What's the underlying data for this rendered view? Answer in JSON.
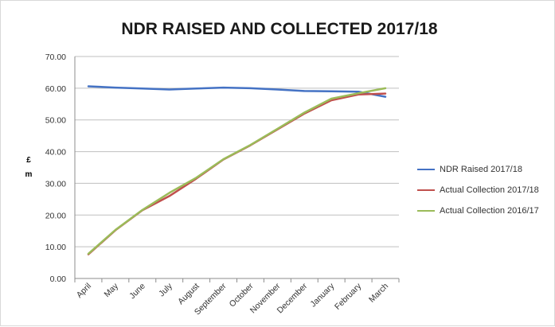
{
  "chart_data": {
    "type": "line",
    "title": "NDR RAISED AND COLLECTED 2017/18",
    "ylabel_lines": [
      "£",
      "m"
    ],
    "categories": [
      "April",
      "May",
      "June",
      "July",
      "August",
      "September",
      "October",
      "November",
      "December",
      "January",
      "February",
      "March"
    ],
    "yticks": [
      "0.00",
      "10.00",
      "20.00",
      "30.00",
      "40.00",
      "50.00",
      "60.00",
      "70.00"
    ],
    "ylim": [
      0,
      70
    ],
    "grid": true,
    "legend_position": "right",
    "series": [
      {
        "name": "NDR Raised 2017/18",
        "color": "#4472c4",
        "values": [
          60.6,
          60.2,
          59.9,
          59.6,
          59.9,
          60.2,
          60.0,
          59.6,
          59.1,
          59.0,
          58.9,
          57.3
        ]
      },
      {
        "name": "Actual Collection 2017/18",
        "color": "#c0504d",
        "values": [
          7.6,
          15.2,
          21.5,
          26.0,
          31.5,
          37.5,
          42.0,
          47.0,
          52.0,
          56.2,
          58.0,
          58.3
        ]
      },
      {
        "name": "Actual Collection 2016/17",
        "color": "#9bbb59",
        "values": [
          7.8,
          15.3,
          21.6,
          27.0,
          31.8,
          37.6,
          42.1,
          47.2,
          52.3,
          56.7,
          58.4,
          60.0
        ]
      }
    ]
  }
}
